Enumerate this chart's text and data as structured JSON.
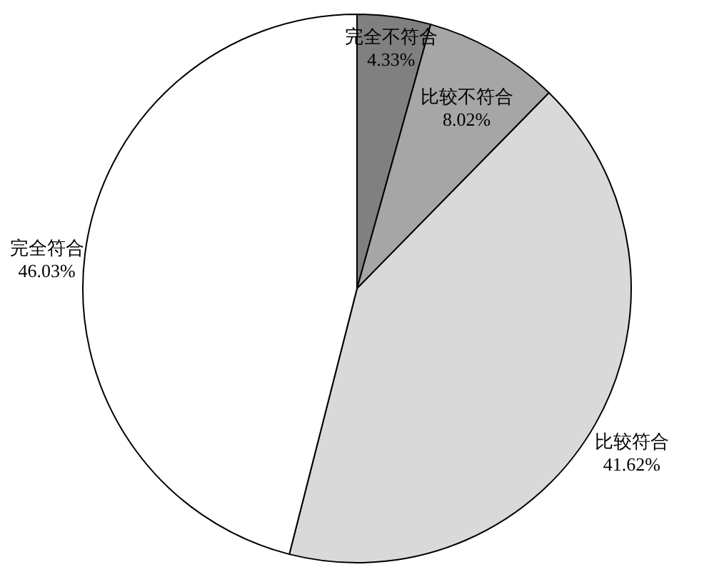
{
  "chart_data": {
    "type": "pie",
    "categories": [
      "完全不符合",
      "比较不符合",
      "比较符合",
      "完全符合"
    ],
    "values": [
      4.33,
      8.02,
      41.62,
      46.03
    ],
    "colors": [
      "#808080",
      "#a6a6a6",
      "#d9d9d9",
      "#ffffff"
    ],
    "value_labels": [
      "4.33%",
      "8.02%",
      "41.62%",
      "46.03%"
    ]
  }
}
